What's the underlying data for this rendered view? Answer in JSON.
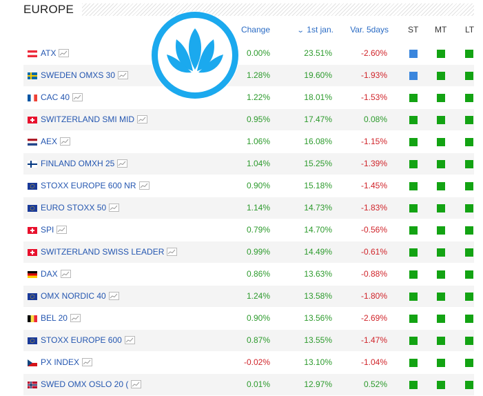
{
  "region": {
    "title": "EUROPE"
  },
  "columns": {
    "change": "Change",
    "first_jan": "1st jan.",
    "var_5days": "Var. 5days",
    "st": "ST",
    "mt": "MT",
    "lt": "LT"
  },
  "colors": {
    "signal_green": "#13a313",
    "signal_blue": "#3a86dd",
    "positive": "#2c9a2c",
    "negative": "#d0242a",
    "link": "#2456b0",
    "logo": "#1ba9ee"
  },
  "rows": [
    {
      "flag": "austria",
      "name": "ATX",
      "change": "0.00%",
      "first_jan": "23.51%",
      "var_5days": "-2.60%",
      "st": "blue",
      "mt": "green",
      "lt": "green"
    },
    {
      "flag": "sweden",
      "name": "SWEDEN OMXS 30",
      "change": "1.28%",
      "first_jan": "19.60%",
      "var_5days": "-1.93%",
      "st": "blue",
      "mt": "green",
      "lt": "green"
    },
    {
      "flag": "france",
      "name": "CAC 40",
      "change": "1.22%",
      "first_jan": "18.01%",
      "var_5days": "-1.53%",
      "st": "green",
      "mt": "green",
      "lt": "green"
    },
    {
      "flag": "switzerland",
      "name": "SWITZERLAND SMI MID",
      "change": "0.95%",
      "first_jan": "17.47%",
      "var_5days": "0.08%",
      "st": "green",
      "mt": "green",
      "lt": "green"
    },
    {
      "flag": "netherlands",
      "name": "AEX",
      "change": "1.06%",
      "first_jan": "16.08%",
      "var_5days": "-1.15%",
      "st": "green",
      "mt": "green",
      "lt": "green"
    },
    {
      "flag": "finland",
      "name": "FINLAND OMXH 25",
      "change": "1.04%",
      "first_jan": "15.25%",
      "var_5days": "-1.39%",
      "st": "green",
      "mt": "green",
      "lt": "green"
    },
    {
      "flag": "eu",
      "name": "STOXX EUROPE 600 NR",
      "change": "0.90%",
      "first_jan": "15.18%",
      "var_5days": "-1.45%",
      "st": "green",
      "mt": "green",
      "lt": "green"
    },
    {
      "flag": "eu",
      "name": "EURO STOXX 50",
      "change": "1.14%",
      "first_jan": "14.73%",
      "var_5days": "-1.83%",
      "st": "green",
      "mt": "green",
      "lt": "green"
    },
    {
      "flag": "switzerland",
      "name": "SPI",
      "change": "0.79%",
      "first_jan": "14.70%",
      "var_5days": "-0.56%",
      "st": "green",
      "mt": "green",
      "lt": "green"
    },
    {
      "flag": "switzerland",
      "name": "SWITZERLAND SWISS LEADER",
      "change": "0.99%",
      "first_jan": "14.49%",
      "var_5days": "-0.61%",
      "st": "green",
      "mt": "green",
      "lt": "green"
    },
    {
      "flag": "germany",
      "name": "DAX",
      "change": "0.86%",
      "first_jan": "13.63%",
      "var_5days": "-0.88%",
      "st": "green",
      "mt": "green",
      "lt": "green"
    },
    {
      "flag": "eu",
      "name": "OMX NORDIC 40",
      "change": "1.24%",
      "first_jan": "13.58%",
      "var_5days": "-1.80%",
      "st": "green",
      "mt": "green",
      "lt": "green"
    },
    {
      "flag": "belgium",
      "name": "BEL 20",
      "change": "0.90%",
      "first_jan": "13.56%",
      "var_5days": "-2.69%",
      "st": "green",
      "mt": "green",
      "lt": "green"
    },
    {
      "flag": "eu",
      "name": "STOXX EUROPE 600",
      "change": "0.87%",
      "first_jan": "13.55%",
      "var_5days": "-1.47%",
      "st": "green",
      "mt": "green",
      "lt": "green"
    },
    {
      "flag": "czech",
      "name": "PX INDEX",
      "change": "-0.02%",
      "first_jan": "13.10%",
      "var_5days": "-1.04%",
      "st": "green",
      "mt": "green",
      "lt": "green"
    },
    {
      "flag": "norway",
      "name": "SWED OMX OSLO 20 (",
      "change": "0.01%",
      "first_jan": "12.97%",
      "var_5days": "0.52%",
      "st": "green",
      "mt": "green",
      "lt": "green"
    }
  ]
}
